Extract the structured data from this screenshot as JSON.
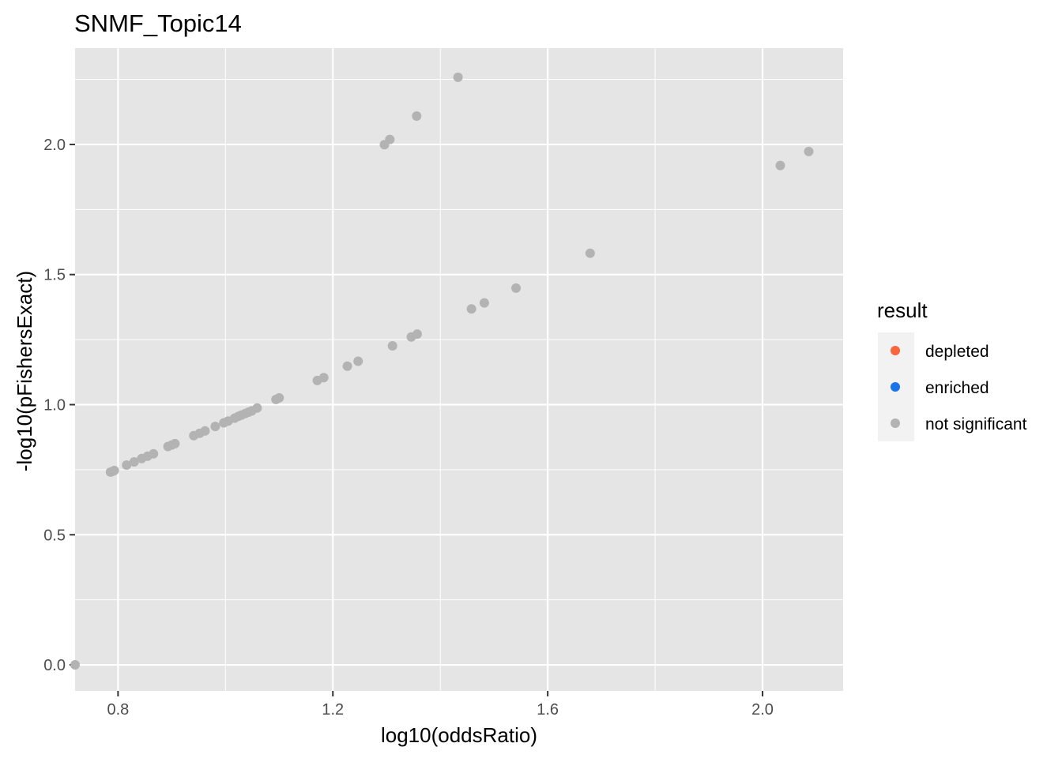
{
  "chart_data": {
    "type": "scatter",
    "title": "SNMF_Topic14",
    "xlabel": "log10(oddsRatio)",
    "ylabel": "-log10(pFishersExact)",
    "xlim": [
      0.72,
      2.15
    ],
    "ylim": [
      -0.1,
      2.37
    ],
    "x_ticks": [
      0.8,
      1.2,
      1.6,
      2.0
    ],
    "x_tick_labels": [
      "0.8",
      "1.2",
      "1.6",
      "2.0"
    ],
    "y_ticks": [
      0.0,
      0.5,
      1.0,
      1.5,
      2.0
    ],
    "y_tick_labels": [
      "0.0",
      "0.5",
      "1.0",
      "1.5",
      "2.0"
    ],
    "grid": true,
    "panel_color": "#e5e5e5",
    "legend": {
      "title": "result",
      "placement": "right",
      "entries": [
        {
          "label": "depleted",
          "color": "#f8663c"
        },
        {
          "label": "enriched",
          "color": "#1a73e8"
        },
        {
          "label": "not significant",
          "color": "#b3b3b3"
        }
      ]
    },
    "series": [
      {
        "name": "not significant",
        "color": "#b3b3b3",
        "points": [
          [
            0.72,
            0.0
          ],
          [
            0.786,
            0.741
          ],
          [
            0.79,
            0.744
          ],
          [
            0.793,
            0.747
          ],
          [
            0.816,
            0.768
          ],
          [
            0.83,
            0.78
          ],
          [
            0.844,
            0.793
          ],
          [
            0.855,
            0.802
          ],
          [
            0.866,
            0.811
          ],
          [
            0.893,
            0.839
          ],
          [
            0.9,
            0.845
          ],
          [
            0.906,
            0.85
          ],
          [
            0.941,
            0.881
          ],
          [
            0.952,
            0.89
          ],
          [
            0.962,
            0.899
          ],
          [
            0.981,
            0.916
          ],
          [
            0.997,
            0.93
          ],
          [
            1.005,
            0.937
          ],
          [
            1.017,
            0.948
          ],
          [
            1.024,
            0.955
          ],
          [
            1.03,
            0.96
          ],
          [
            1.037,
            0.966
          ],
          [
            1.043,
            0.971
          ],
          [
            1.049,
            0.976
          ],
          [
            1.059,
            0.987
          ],
          [
            1.094,
            1.02
          ],
          [
            1.1,
            1.026
          ],
          [
            1.171,
            1.093
          ],
          [
            1.183,
            1.104
          ],
          [
            1.227,
            1.148
          ],
          [
            1.247,
            1.167
          ],
          [
            1.311,
            1.226
          ],
          [
            1.346,
            1.26
          ],
          [
            1.357,
            1.271
          ],
          [
            1.458,
            1.368
          ],
          [
            1.482,
            1.391
          ],
          [
            1.541,
            1.448
          ],
          [
            1.679,
            1.582
          ],
          [
            1.296,
            1.999
          ],
          [
            1.306,
            2.019
          ],
          [
            1.356,
            2.109
          ],
          [
            1.433,
            2.258
          ],
          [
            2.033,
            1.919
          ],
          [
            2.086,
            1.973
          ]
        ]
      }
    ]
  }
}
